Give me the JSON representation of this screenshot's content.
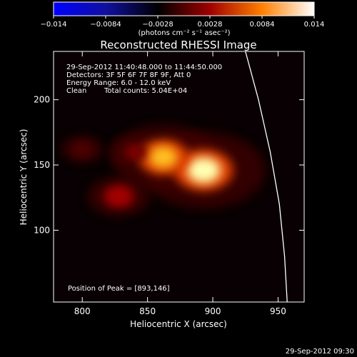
{
  "chart_data": {
    "type": "heatmap",
    "title": "Reconstructed RHESSI Image",
    "xlabel": "Heliocentric X (arcsec)",
    "ylabel": "Heliocentric Y (arcsec)",
    "xlim": [
      778,
      970
    ],
    "ylim": [
      45,
      237
    ],
    "x_ticks": [
      800,
      850,
      900,
      950
    ],
    "y_ticks": [
      100,
      150,
      200
    ],
    "colorbar": {
      "min": -0.014,
      "max": 0.014,
      "tick_values": [
        -0.014,
        -0.0084,
        -0.0028,
        0.0028,
        0.0084,
        0.014
      ],
      "tick_labels": [
        "−0.014",
        "−0.0084",
        "−0.0028",
        "0.0028",
        "0.0084",
        "0.014"
      ],
      "units_text": "(photons cm⁻² s⁻¹ asec⁻²)",
      "palette": [
        "#0000ff",
        "#1010a0",
        "#000000",
        "#a00000",
        "#ff8000",
        "#ffffff"
      ]
    },
    "sources": [
      {
        "x": 893,
        "y": 146,
        "value": 0.014
      },
      {
        "x": 862,
        "y": 156,
        "value": 0.011
      },
      {
        "x": 828,
        "y": 126,
        "value": 0.0045
      },
      {
        "x": 840,
        "y": 160,
        "value": 0.0025
      },
      {
        "x": 800,
        "y": 162,
        "value": 0.0012
      }
    ],
    "limb": [
      [
        925,
        237
      ],
      [
        935,
        200
      ],
      [
        944,
        160
      ],
      [
        951,
        120
      ],
      [
        955,
        80
      ],
      [
        957,
        45
      ]
    ],
    "annotations": {
      "time": "29-Sep-2012 11:40:48.000 to 11:44:50.000",
      "detectors": "Detectors: 3F 5F 6F 7F 8F 9F, Att 0",
      "energy": "Energy Range: 6.0 - 12.0 keV",
      "clean_label": "Clean",
      "total_counts": "Total counts: 5.04E+04",
      "peak": "Position of Peak = [893,146]"
    }
  },
  "footer_timestamp": "29-Sep-2012 09:30"
}
